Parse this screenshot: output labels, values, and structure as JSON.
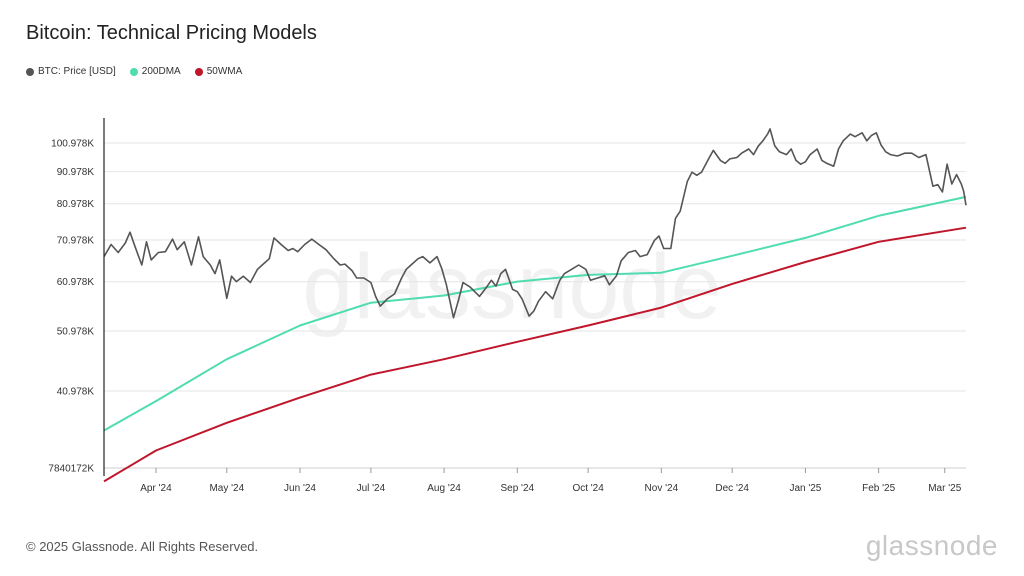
{
  "title": "Bitcoin: Technical Pricing Models",
  "footer": "© 2025 Glassnode. All Rights Reserved.",
  "brand": "glassnode",
  "watermark": "glassnode",
  "colors": {
    "price": "#555555",
    "dma200": "#4fdcb0",
    "wma50": "#c0162b",
    "grid": "#e6e6e6"
  },
  "chart_data": {
    "type": "line",
    "title": "Bitcoin: Technical Pricing Models",
    "xlabel": "",
    "ylabel": "",
    "x_ticks": [
      "Apr '24",
      "May '24",
      "Jun '24",
      "Jul '24",
      "Aug '24",
      "Sep '24",
      "Oct '24",
      "Nov '24",
      "Dec '24",
      "Jan '25",
      "Feb '25",
      "Mar '25"
    ],
    "y_ticks": [
      "100.978K",
      "90.978K",
      "80.978K",
      "70.978K",
      "60.978K",
      "50.978K",
      "40.978K",
      "7840172K"
    ],
    "y_scale": "log",
    "x_range": [
      "2024-03-10",
      "2025-03-10"
    ],
    "grid": "horizontal",
    "legend_position": "top-left",
    "series": [
      {
        "name": "BTC: Price [USD]",
        "points": [
          [
            "2024-03-10",
            66800
          ],
          [
            "2024-03-13",
            69800
          ],
          [
            "2024-03-16",
            67800
          ],
          [
            "2024-03-19",
            70200
          ],
          [
            "2024-03-21",
            73000
          ],
          [
            "2024-03-23",
            69500
          ],
          [
            "2024-03-26",
            64800
          ],
          [
            "2024-03-28",
            70500
          ],
          [
            "2024-03-30",
            66000
          ],
          [
            "2024-04-02",
            67800
          ],
          [
            "2024-04-05",
            68000
          ],
          [
            "2024-04-08",
            71200
          ],
          [
            "2024-04-10",
            68500
          ],
          [
            "2024-04-13",
            70500
          ],
          [
            "2024-04-16",
            64800
          ],
          [
            "2024-04-19",
            71800
          ],
          [
            "2024-04-21",
            66800
          ],
          [
            "2024-04-24",
            64800
          ],
          [
            "2024-04-26",
            62800
          ],
          [
            "2024-04-28",
            66000
          ],
          [
            "2024-05-01",
            57400
          ],
          [
            "2024-05-03",
            62200
          ],
          [
            "2024-05-05",
            61000
          ],
          [
            "2024-05-08",
            62200
          ],
          [
            "2024-05-11",
            60800
          ],
          [
            "2024-05-14",
            63800
          ],
          [
            "2024-05-16",
            64800
          ],
          [
            "2024-05-19",
            66300
          ],
          [
            "2024-05-21",
            71500
          ],
          [
            "2024-05-24",
            69800
          ],
          [
            "2024-05-27",
            68300
          ],
          [
            "2024-05-29",
            68800
          ],
          [
            "2024-05-31",
            68000
          ],
          [
            "2024-06-03",
            69800
          ],
          [
            "2024-06-06",
            71200
          ],
          [
            "2024-06-09",
            69800
          ],
          [
            "2024-06-12",
            68500
          ],
          [
            "2024-06-15",
            66500
          ],
          [
            "2024-06-18",
            64800
          ],
          [
            "2024-06-20",
            65000
          ],
          [
            "2024-06-23",
            63500
          ],
          [
            "2024-06-25",
            61800
          ],
          [
            "2024-06-28",
            61800
          ],
          [
            "2024-07-01",
            60800
          ],
          [
            "2024-07-03",
            57800
          ],
          [
            "2024-07-05",
            55800
          ],
          [
            "2024-07-08",
            57300
          ],
          [
            "2024-07-11",
            58300
          ],
          [
            "2024-07-14",
            61800
          ],
          [
            "2024-07-16",
            63800
          ],
          [
            "2024-07-18",
            64800
          ],
          [
            "2024-07-21",
            66300
          ],
          [
            "2024-07-23",
            66800
          ],
          [
            "2024-07-26",
            65300
          ],
          [
            "2024-07-29",
            66800
          ],
          [
            "2024-07-31",
            64000
          ],
          [
            "2024-08-02",
            60300
          ],
          [
            "2024-08-05",
            53500
          ],
          [
            "2024-08-07",
            56800
          ],
          [
            "2024-08-09",
            60800
          ],
          [
            "2024-08-12",
            59800
          ],
          [
            "2024-08-14",
            58800
          ],
          [
            "2024-08-16",
            57800
          ],
          [
            "2024-08-19",
            59800
          ],
          [
            "2024-08-21",
            61300
          ],
          [
            "2024-08-23",
            60000
          ],
          [
            "2024-08-25",
            62800
          ],
          [
            "2024-08-27",
            63800
          ],
          [
            "2024-08-30",
            59300
          ],
          [
            "2024-09-01",
            58800
          ],
          [
            "2024-09-03",
            57300
          ],
          [
            "2024-09-06",
            53800
          ],
          [
            "2024-09-08",
            54800
          ],
          [
            "2024-09-10",
            56800
          ],
          [
            "2024-09-13",
            58800
          ],
          [
            "2024-09-16",
            57300
          ],
          [
            "2024-09-19",
            61300
          ],
          [
            "2024-09-21",
            62800
          ],
          [
            "2024-09-24",
            63800
          ],
          [
            "2024-09-27",
            64800
          ],
          [
            "2024-09-30",
            63800
          ],
          [
            "2024-10-02",
            61300
          ],
          [
            "2024-10-05",
            61800
          ],
          [
            "2024-10-08",
            62300
          ],
          [
            "2024-10-10",
            60300
          ],
          [
            "2024-10-13",
            62300
          ],
          [
            "2024-10-15",
            65800
          ],
          [
            "2024-10-18",
            67800
          ],
          [
            "2024-10-21",
            68300
          ],
          [
            "2024-10-23",
            66800
          ],
          [
            "2024-10-26",
            67300
          ],
          [
            "2024-10-29",
            70800
          ],
          [
            "2024-10-31",
            72000
          ],
          [
            "2024-11-02",
            68800
          ],
          [
            "2024-11-05",
            68800
          ],
          [
            "2024-11-07",
            76800
          ],
          [
            "2024-11-09",
            78800
          ],
          [
            "2024-11-12",
            87800
          ],
          [
            "2024-11-14",
            90800
          ],
          [
            "2024-11-16",
            89800
          ],
          [
            "2024-11-18",
            90800
          ],
          [
            "2024-11-21",
            95300
          ],
          [
            "2024-11-23",
            98300
          ],
          [
            "2024-11-26",
            94800
          ],
          [
            "2024-11-28",
            93800
          ],
          [
            "2024-11-30",
            95300
          ],
          [
            "2024-12-03",
            95800
          ],
          [
            "2024-12-05",
            97300
          ],
          [
            "2024-12-08",
            98800
          ],
          [
            "2024-12-10",
            96800
          ],
          [
            "2024-12-12",
            99800
          ],
          [
            "2024-12-14",
            101800
          ],
          [
            "2024-12-16",
            104300
          ],
          [
            "2024-12-17",
            106300
          ],
          [
            "2024-12-19",
            100000
          ],
          [
            "2024-12-21",
            97800
          ],
          [
            "2024-12-24",
            96800
          ],
          [
            "2024-12-26",
            98800
          ],
          [
            "2024-12-28",
            94800
          ],
          [
            "2024-12-30",
            93500
          ],
          [
            "2025-01-01",
            94300
          ],
          [
            "2025-01-03",
            96800
          ],
          [
            "2025-01-06",
            98800
          ],
          [
            "2025-01-08",
            94800
          ],
          [
            "2025-01-10",
            93800
          ],
          [
            "2025-01-13",
            92800
          ],
          [
            "2025-01-15",
            98800
          ],
          [
            "2025-01-17",
            101800
          ],
          [
            "2025-01-20",
            104300
          ],
          [
            "2025-01-22",
            103300
          ],
          [
            "2025-01-25",
            104800
          ],
          [
            "2025-01-27",
            101800
          ],
          [
            "2025-01-29",
            103800
          ],
          [
            "2025-01-31",
            104800
          ],
          [
            "2025-02-02",
            100300
          ],
          [
            "2025-02-04",
            97800
          ],
          [
            "2025-02-06",
            96800
          ],
          [
            "2025-02-09",
            96300
          ],
          [
            "2025-02-12",
            97300
          ],
          [
            "2025-02-15",
            97300
          ],
          [
            "2025-02-18",
            95800
          ],
          [
            "2025-02-21",
            96800
          ],
          [
            "2025-02-24",
            86300
          ],
          [
            "2025-02-26",
            86800
          ],
          [
            "2025-02-28",
            84500
          ],
          [
            "2025-03-02",
            93500
          ],
          [
            "2025-03-04",
            87000
          ],
          [
            "2025-03-06",
            90000
          ],
          [
            "2025-03-08",
            87000
          ],
          [
            "2025-03-09",
            84800
          ],
          [
            "2025-03-10",
            80500
          ]
        ]
      },
      {
        "name": "200DMA",
        "points": [
          [
            "2024-03-10",
            35500
          ],
          [
            "2024-04-01",
            39500
          ],
          [
            "2024-05-01",
            46000
          ],
          [
            "2024-06-01",
            52000
          ],
          [
            "2024-07-01",
            56500
          ],
          [
            "2024-08-01",
            58000
          ],
          [
            "2024-09-01",
            61000
          ],
          [
            "2024-10-01",
            62500
          ],
          [
            "2024-11-01",
            63000
          ],
          [
            "2024-12-01",
            67000
          ],
          [
            "2025-01-01",
            71500
          ],
          [
            "2025-02-01",
            77500
          ],
          [
            "2025-03-10",
            83000
          ]
        ]
      },
      {
        "name": "50WMA",
        "points": [
          [
            "2024-03-10",
            29500
          ],
          [
            "2024-04-01",
            33000
          ],
          [
            "2024-05-01",
            36500
          ],
          [
            "2024-06-01",
            40000
          ],
          [
            "2024-07-01",
            43500
          ],
          [
            "2024-08-01",
            46000
          ],
          [
            "2024-09-01",
            49000
          ],
          [
            "2024-10-01",
            52000
          ],
          [
            "2024-11-01",
            55500
          ],
          [
            "2024-12-01",
            60500
          ],
          [
            "2025-01-01",
            65500
          ],
          [
            "2025-02-01",
            70500
          ],
          [
            "2025-03-10",
            74200
          ]
        ]
      }
    ]
  }
}
